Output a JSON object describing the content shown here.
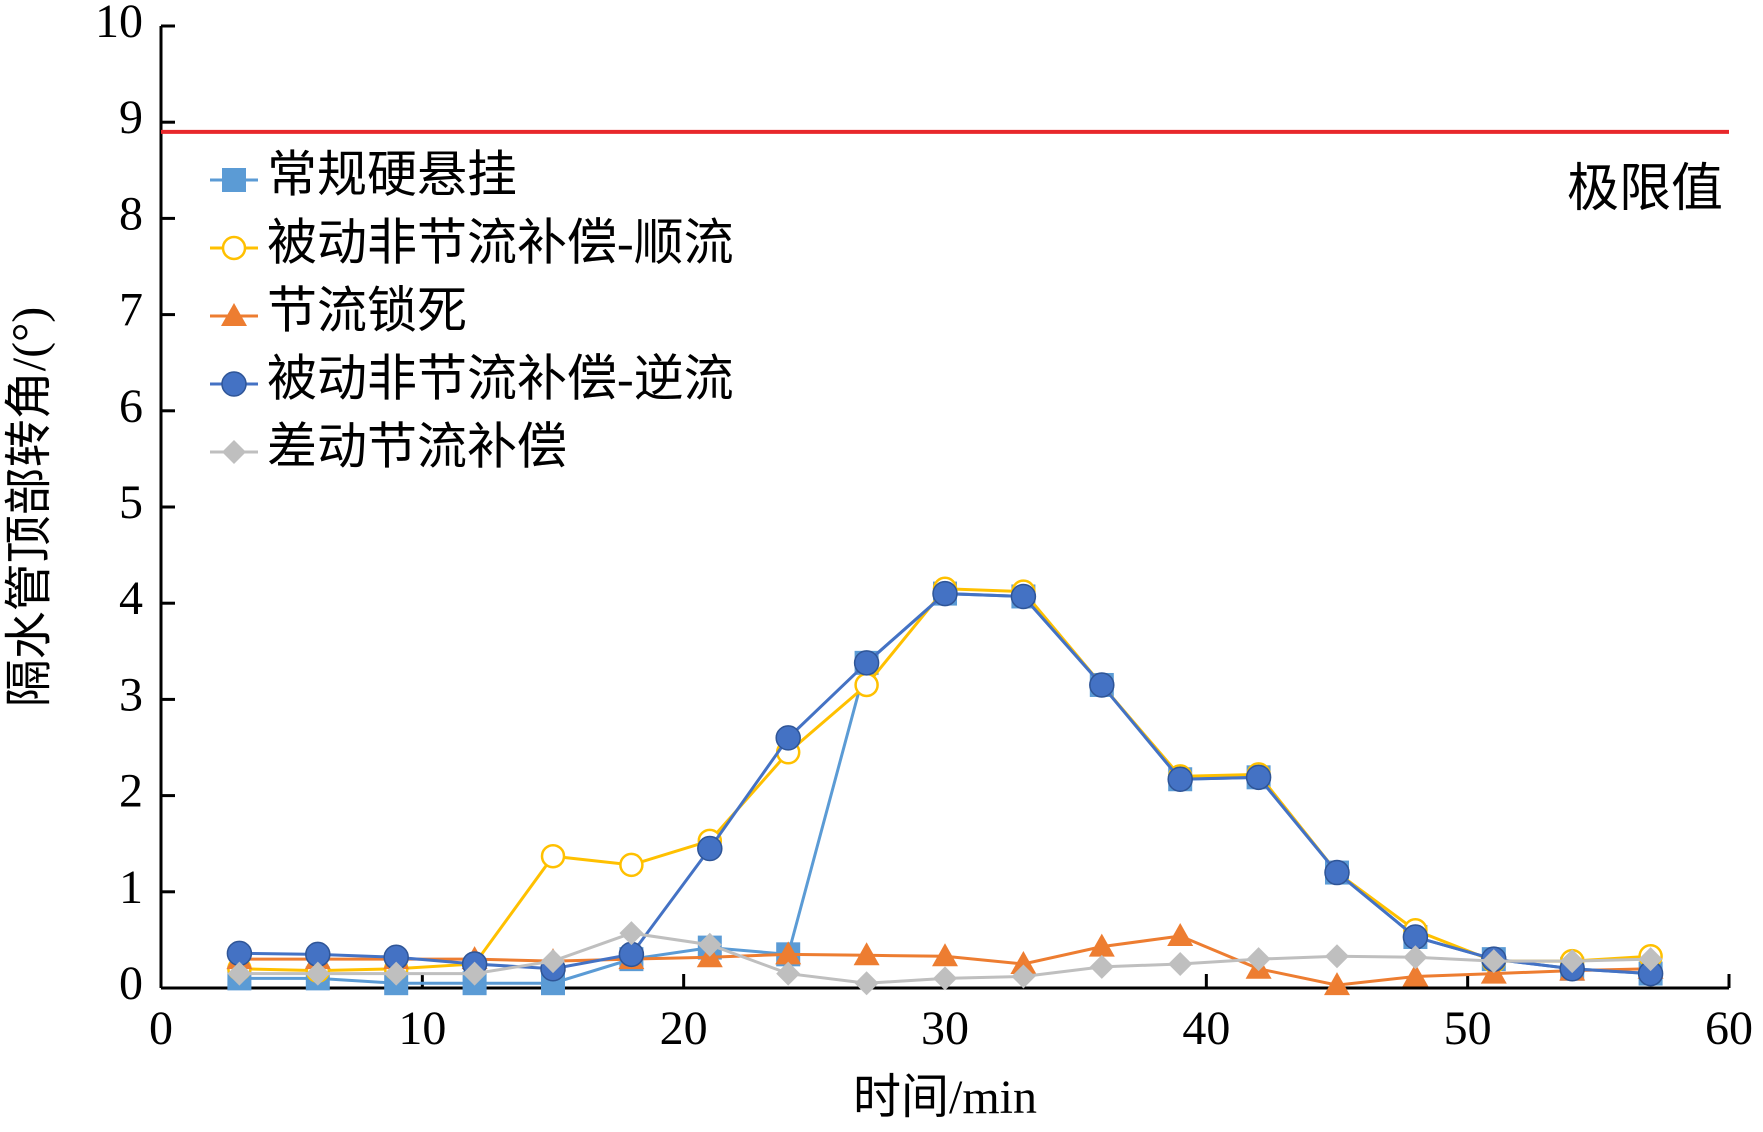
{
  "chart_data": {
    "type": "line",
    "xlabel": "时间/min",
    "ylabel": "隔水管顶部转角/(°)",
    "x": [
      3,
      6,
      9,
      12,
      15,
      18,
      21,
      24,
      27,
      30,
      33,
      36,
      39,
      42,
      45,
      48,
      51,
      54,
      57
    ],
    "series": [
      {
        "name": "常规硬悬挂",
        "color": "#5b9bd5",
        "marker": "square",
        "values": [
          0.1,
          0.1,
          0.05,
          0.05,
          0.05,
          0.3,
          0.42,
          0.35,
          3.38,
          4.1,
          4.07,
          3.15,
          2.17,
          2.19,
          1.2,
          0.53,
          0.3,
          0.2,
          0.15
        ]
      },
      {
        "name": "被动非节流补偿-顺流",
        "color": "#ffc000",
        "marker": "open-circle",
        "values": [
          0.2,
          0.18,
          0.2,
          0.25,
          1.37,
          1.28,
          1.53,
          2.45,
          3.15,
          4.15,
          4.12,
          3.15,
          2.2,
          2.22,
          1.2,
          0.6,
          0.28,
          0.28,
          0.33
        ]
      },
      {
        "name": "节流锁死",
        "color": "#ed7d31",
        "marker": "triangle",
        "values": [
          0.3,
          0.3,
          0.3,
          0.3,
          0.28,
          0.3,
          0.32,
          0.35,
          0.34,
          0.33,
          0.25,
          0.43,
          0.54,
          0.2,
          0.03,
          0.12,
          0.15,
          0.18,
          0.2
        ]
      },
      {
        "name": "被动非节流补偿-逆流",
        "color": "#4472c4",
        "marker": "circle",
        "values": [
          0.36,
          0.35,
          0.32,
          0.25,
          0.2,
          0.35,
          1.45,
          2.6,
          3.38,
          4.1,
          4.07,
          3.15,
          2.17,
          2.19,
          1.2,
          0.53,
          0.3,
          0.2,
          0.15
        ]
      },
      {
        "name": "差动节流补偿",
        "color": "#bfbfbf",
        "marker": "diamond",
        "values": [
          0.15,
          0.15,
          0.15,
          0.15,
          0.28,
          0.57,
          0.45,
          0.15,
          0.05,
          0.1,
          0.12,
          0.22,
          0.25,
          0.3,
          0.33,
          0.32,
          0.28,
          0.28,
          0.3
        ]
      }
    ],
    "reference_line": {
      "label": "极限值",
      "value": 8.9,
      "color": "#e8282b"
    },
    "xlim": [
      0,
      60
    ],
    "xticks": [
      0,
      10,
      20,
      30,
      40,
      50,
      60
    ],
    "ylim": [
      0,
      10
    ],
    "yticks": [
      0,
      1,
      2,
      3,
      4,
      5,
      6,
      7,
      8,
      9,
      10
    ],
    "grid": false,
    "legend": "upper left"
  }
}
